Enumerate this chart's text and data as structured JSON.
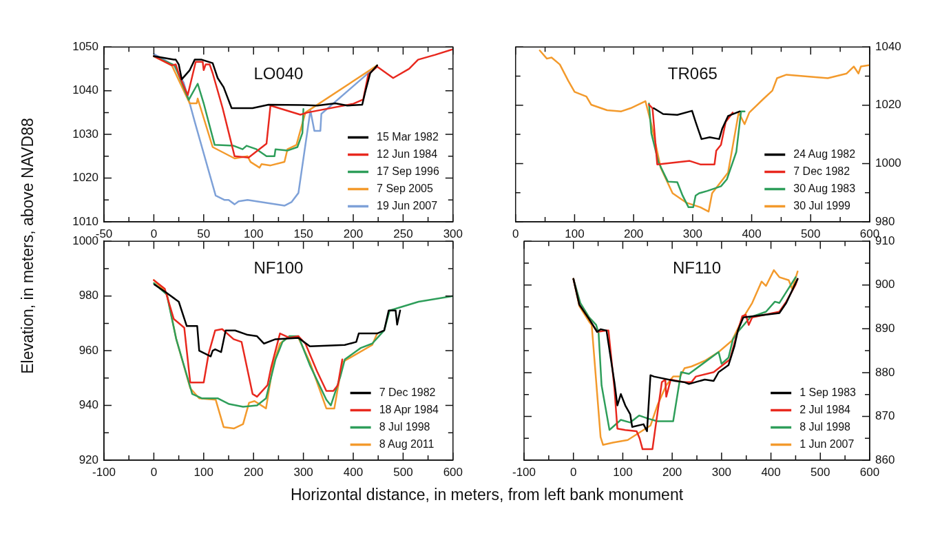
{
  "chart_data": [
    {
      "type": "line",
      "title": "LO040",
      "ylabel": "Elevation, in meters, above NAVD88",
      "marker": "none",
      "legend": "bottom right",
      "xlim": [
        -50,
        300
      ],
      "xticks": [
        -50,
        {
          "value": -25,
          "label": null
        },
        0,
        {
          "value": 25,
          "label": null
        },
        50,
        {
          "value": 75,
          "label": null
        },
        100,
        {
          "value": 125,
          "label": null
        },
        150,
        {
          "value": 175,
          "label": null
        },
        200,
        {
          "value": 225,
          "label": null
        },
        250,
        {
          "value": 275,
          "label": null
        },
        300
      ],
      "ylim": [
        1010,
        1050
      ],
      "yticks": [
        1010,
        {
          "value": 1015,
          "label": null
        },
        1020,
        {
          "value": 1025,
          "label": null
        },
        1030,
        {
          "value": 1035,
          "label": null
        },
        1040,
        {
          "value": 1045,
          "label": null
        },
        1050
      ],
      "series": [
        {
          "name": "15 Mar 1982",
          "color": "#000000",
          "x": [
            0,
            20,
            22,
            25,
            28,
            36,
            41,
            48,
            59,
            64,
            70,
            78,
            99,
            115,
            150,
            164,
            182,
            194,
            209,
            212,
            217,
            224
          ],
          "values": [
            1047.9,
            1047.1,
            1047.1,
            1046,
            1042.6,
            1044.7,
            1047.1,
            1047.1,
            1046.3,
            1042.9,
            1040.8,
            1036,
            1036,
            1036.8,
            1036.7,
            1036.6,
            1037.1,
            1036.6,
            1036.8,
            1039.7,
            1044,
            1045.8
          ]
        },
        {
          "name": "12 Jun 1984",
          "color": "#e8281e",
          "x": [
            0,
            18,
            22,
            26,
            34,
            42,
            49,
            50,
            52,
            56,
            59,
            69,
            81,
            95,
            113,
            117,
            147,
            154,
            200,
            210,
            215,
            224,
            240,
            256,
            265,
            282,
            300
          ],
          "values": [
            1047.9,
            1045.8,
            1046,
            1043.2,
            1039,
            1046.6,
            1046.6,
            1044.7,
            1046,
            1046,
            1044,
            1036,
            1025,
            1024.7,
            1027.9,
            1036.6,
            1034.5,
            1035,
            1037,
            1038,
            1043.7,
            1045.5,
            1042.9,
            1045,
            1047.1,
            1048.2,
            1049.5
          ]
        },
        {
          "name": "17 Sep 1996",
          "color": "#2e9e5a",
          "x": [
            0,
            21,
            35,
            44,
            50,
            61,
            80,
            89,
            93,
            103,
            113,
            121,
            122,
            134,
            144,
            149,
            150
          ],
          "values": [
            1047.9,
            1045.8,
            1037.9,
            1041.6,
            1037.1,
            1027.6,
            1027.4,
            1026.6,
            1027.4,
            1026.6,
            1025,
            1025,
            1026.6,
            1026.3,
            1027.1,
            1030.3,
            1035.8
          ]
        },
        {
          "name": "7 Sep 2005",
          "color": "#f39a2c",
          "x": [
            0,
            18,
            36,
            43,
            44,
            59,
            81,
            94,
            97,
            106,
            108,
            117,
            131,
            134,
            143,
            152,
            224
          ],
          "values": [
            1047.9,
            1045.8,
            1037.1,
            1037.1,
            1038.2,
            1027.1,
            1024.5,
            1025,
            1023.7,
            1022.4,
            1023.2,
            1022.9,
            1023.7,
            1026.6,
            1027.6,
            1035,
            1045.8
          ]
        },
        {
          "name": "19 Jun 2007",
          "color": "#7ea1d8",
          "x": [
            0,
            20,
            30,
            36,
            41,
            62,
            71,
            75,
            81,
            85,
            94,
            131,
            138,
            145,
            157,
            161,
            167,
            168,
            224
          ],
          "values": [
            1048.4,
            1045.8,
            1041.8,
            1037.1,
            1032.9,
            1016,
            1015,
            1015,
            1014,
            1014.7,
            1015,
            1013.7,
            1014.5,
            1016.6,
            1035.5,
            1030.8,
            1030.8,
            1034.7,
            1045.8
          ]
        }
      ]
    },
    {
      "type": "line",
      "title": "TR065",
      "marker": "none",
      "legend": "bottom right",
      "xlim": [
        0,
        600
      ],
      "xticks": [
        0,
        {
          "value": 50,
          "label": null
        },
        100,
        {
          "value": 150,
          "label": null
        },
        200,
        {
          "value": 250,
          "label": null
        },
        300,
        {
          "value": 350,
          "label": null
        },
        400,
        {
          "value": 450,
          "label": null
        },
        500,
        {
          "value": 550,
          "label": null
        },
        600
      ],
      "y2lim": [
        980,
        1040
      ],
      "y2ticks": [
        980,
        {
          "value": 990,
          "label": null
        },
        1000,
        {
          "value": 1010,
          "label": null
        },
        1020,
        {
          "value": 1030,
          "label": null
        },
        1040
      ],
      "series": [
        {
          "name": "24 Aug 1982",
          "color": "#000000",
          "axis": "y2",
          "x": [
            234,
            250,
            274,
            299,
            305,
            315,
            329,
            345,
            350,
            360,
            380
          ],
          "values": [
            1019,
            1017,
            1016.7,
            1018.1,
            1014.3,
            1008.4,
            1009,
            1008.4,
            1011.9,
            1016.3,
            1017.9
          ]
        },
        {
          "name": "7 Dec 1982",
          "color": "#e8281e",
          "axis": "y2",
          "x": [
            226,
            232,
            240,
            295,
            313,
            337,
            340,
            348,
            356,
            368
          ],
          "values": [
            1020.2,
            1019,
            999.7,
            1000.9,
            999.7,
            999.7,
            1004.4,
            1006.4,
            1014.3,
            1017.5
          ]
        },
        {
          "name": "30 Aug 1983",
          "color": "#2e9e5a",
          "axis": "y2",
          "x": [
            226,
            230,
            242,
            258,
            274,
            283,
            293,
            301,
            305,
            311,
            325,
            348,
            358,
            374,
            382,
            388
          ],
          "values": [
            1020.6,
            1010.4,
            1000.5,
            993.8,
            993.6,
            989,
            985,
            985,
            989,
            989.8,
            990.6,
            992.2,
            994.6,
            1004,
            1017.9,
            1017.9
          ]
        },
        {
          "name": "30 Jul 1999",
          "color": "#f39a2c",
          "axis": "y2",
          "x": [
            41,
            53,
            61,
            75,
            89,
            100,
            120,
            128,
            155,
            179,
            195,
            220,
            230,
            246,
            266,
            289,
            313,
            327,
            333,
            360,
            378,
            388,
            396,
            420,
            435,
            443,
            459,
            529,
            561,
            573,
            581,
            585,
            598
          ],
          "values": [
            1038.8,
            1036,
            1036.4,
            1034,
            1028.5,
            1024.6,
            1023,
            1020.2,
            1018.3,
            1017.9,
            1019,
            1021.4,
            1013.5,
            998.5,
            989.8,
            986.6,
            985,
            983.5,
            989.8,
            996.9,
            1017.5,
            1013.5,
            1017.5,
            1022.2,
            1025,
            1029.3,
            1030.5,
            1029.3,
            1030.9,
            1033.3,
            1030.9,
            1033.3,
            1033.7
          ]
        }
      ]
    },
    {
      "type": "line",
      "title": "NF100",
      "xlabel": "Horizontal distance, in meters, from left bank monument",
      "marker": "none",
      "legend": "bottom right",
      "xlim": [
        -100,
        600
      ],
      "xticks": [
        -100,
        {
          "value": -50,
          "label": null
        },
        0,
        {
          "value": 50,
          "label": null
        },
        100,
        {
          "value": 150,
          "label": null
        },
        200,
        {
          "value": 250,
          "label": null
        },
        300,
        {
          "value": 350,
          "label": null
        },
        400,
        {
          "value": 450,
          "label": null
        },
        500,
        {
          "value": 550,
          "label": null
        },
        600
      ],
      "ylim": [
        920,
        1000
      ],
      "yticks": [
        920,
        {
          "value": 930,
          "label": null
        },
        940,
        {
          "value": 950,
          "label": null
        },
        960,
        {
          "value": 970,
          "label": null
        },
        980,
        {
          "value": 990,
          "label": null
        },
        1000
      ],
      "series": [
        {
          "name": "7 Dec 1982",
          "color": "#000000",
          "x": [
            1,
            22,
            50,
            66,
            87,
            91,
            114,
            118,
            123,
            135,
            144,
            163,
            188,
            207,
            221,
            244,
            290,
            313,
            383,
            406,
            411,
            448,
            462,
            471,
            485,
            488,
            494
          ],
          "values": [
            984.2,
            981.6,
            977.9,
            969,
            969,
            960,
            957.9,
            960,
            960.5,
            959.5,
            967.4,
            967.4,
            965.8,
            965.3,
            962.6,
            964.2,
            964.7,
            961.6,
            962.1,
            963.2,
            966.3,
            966.3,
            967.4,
            974.7,
            974.7,
            969.5,
            974.7
          ]
        },
        {
          "name": "18 Apr 1984",
          "color": "#e8281e",
          "x": [
            0,
            22,
            40,
            61,
            73,
            100,
            110,
            123,
            137,
            160,
            176,
            198,
            207,
            228,
            235,
            244,
            253,
            272,
            290,
            304,
            327,
            346,
            360,
            369,
            378
          ],
          "values": [
            985.8,
            982.6,
            971.6,
            968.4,
            948.4,
            948.4,
            959,
            967.4,
            967.9,
            964.2,
            963.2,
            944.2,
            943.2,
            947.4,
            953.7,
            960,
            966.3,
            964.7,
            965.3,
            962.6,
            952.6,
            945.3,
            945.3,
            947.4,
            956.8
          ]
        },
        {
          "name": "8 Jul 1998",
          "color": "#2e9e5a",
          "x": [
            0,
            26,
            45,
            77,
            96,
            128,
            151,
            179,
            207,
            225,
            244,
            258,
            272,
            290,
            313,
            346,
            355,
            374,
            383,
            415,
            438,
            462,
            473,
            531,
            600
          ],
          "values": [
            984.7,
            980.5,
            964.2,
            944.2,
            942.6,
            942.6,
            940.5,
            939.5,
            940,
            942.6,
            956.8,
            963.2,
            965.3,
            965.3,
            954.7,
            942.1,
            940,
            950.5,
            956.8,
            961,
            962.6,
            967.4,
            974.7,
            977.9,
            980
          ]
        },
        {
          "name": "8 Aug 2011",
          "color": "#f39a2c",
          "x": [
            0,
            26,
            45,
            73,
            91,
            124,
            140,
            161,
            179,
            191,
            202,
            225,
            239,
            253,
            272,
            290,
            313,
            346,
            362,
            378,
            438,
            448
          ],
          "values": [
            985.8,
            981,
            964.2,
            946.3,
            942.6,
            942.1,
            932.1,
            931.6,
            933.2,
            941,
            941.6,
            938.9,
            954.7,
            962.6,
            965.3,
            964.7,
            955.8,
            938.9,
            938.9,
            955.8,
            962.1,
            966.3
          ]
        }
      ]
    },
    {
      "type": "line",
      "title": "NF110",
      "marker": "none",
      "legend": "bottom right",
      "xlim": [
        -100,
        600
      ],
      "xticks": [
        -100,
        {
          "value": -50,
          "label": null
        },
        0,
        {
          "value": 50,
          "label": null
        },
        100,
        {
          "value": 150,
          "label": null
        },
        200,
        {
          "value": 250,
          "label": null
        },
        300,
        {
          "value": 350,
          "label": null
        },
        400,
        {
          "value": 450,
          "label": null
        },
        500,
        {
          "value": 550,
          "label": null
        },
        600
      ],
      "y2lim": [
        860,
        910
      ],
      "y2ticks": [
        860,
        {
          "value": 865,
          "label": null
        },
        870,
        {
          "value": 875,
          "label": null
        },
        880,
        {
          "value": 885,
          "label": null
        },
        890,
        {
          "value": 895,
          "label": null
        },
        900,
        {
          "value": 905,
          "label": null
        },
        910
      ],
      "series": [
        {
          "name": "1 Sep 1983",
          "color": "#000000",
          "axis": "y2",
          "x": [
            0,
            12,
            32,
            48,
            55,
            67,
            83,
            89,
            96,
            105,
            115,
            119,
            142,
            149,
            156,
            163,
            206,
            225,
            234,
            266,
            284,
            294,
            314,
            326,
            333,
            344,
            417,
            431,
            454
          ],
          "values": [
            901.4,
            895.5,
            892.2,
            889.3,
            889.9,
            889.6,
            877.8,
            872.5,
            875.1,
            872.5,
            870.5,
            867.6,
            868.2,
            866.6,
            879.4,
            879.1,
            878.1,
            877.8,
            877.4,
            878.4,
            878.1,
            880.1,
            881.7,
            886,
            889.6,
            892.6,
            893.6,
            895.9,
            901.4
          ]
        },
        {
          "name": "2 Jul 1984",
          "color": "#e8281e",
          "axis": "y2",
          "x": [
            0,
            12,
            32,
            48,
            67,
            71,
            83,
            89,
            105,
            128,
            134,
            140,
            160,
            165,
            179,
            186,
            188,
            197,
            225,
            239,
            248,
            284,
            317,
            333,
            342,
            349,
            355,
            362,
            417,
            431,
            450,
            454
          ],
          "values": [
            901.4,
            895.5,
            892.2,
            889.3,
            889.6,
            889.6,
            876.4,
            867.2,
            866.9,
            866.6,
            865,
            862.5,
            862.5,
            866.6,
            877.8,
            878.4,
            874.5,
            878.4,
            877.8,
            877.8,
            879.1,
            880.1,
            883,
            889.6,
            892.9,
            893.2,
            890.9,
            892.6,
            893.9,
            896.2,
            900.1,
            901.4
          ]
        },
        {
          "name": "8 Jul 1998",
          "color": "#2e9e5a",
          "axis": "y2",
          "x": [
            0,
            14,
            32,
            46,
            51,
            57,
            73,
            83,
            96,
            115,
            133,
            151,
            170,
            202,
            218,
            234,
            294,
            300,
            314,
            323,
            333,
            358,
            390,
            408,
            417,
            450
          ],
          "values": [
            901.4,
            895.9,
            892.6,
            890.9,
            889,
            877.1,
            866.9,
            867.9,
            869.2,
            868.6,
            870.2,
            869.5,
            868.9,
            868.9,
            880.1,
            879.7,
            884.7,
            882,
            883.4,
            887.6,
            889.3,
            892.6,
            893.9,
            896.2,
            895.9,
            901.8
          ]
        },
        {
          "name": "1 Jun 2007",
          "color": "#f39a2c",
          "axis": "y2",
          "x": [
            0,
            12,
            32,
            37,
            55,
            60,
            80,
            110,
            156,
            170,
            188,
            202,
            216,
            225,
            239,
            266,
            294,
            321,
            344,
            362,
            381,
            390,
            406,
            417,
            436,
            443,
            454
          ],
          "values": [
            901.4,
            895.2,
            891.6,
            890.9,
            865.3,
            863.5,
            864,
            864.6,
            867.9,
            872.5,
            877.1,
            879.1,
            879.1,
            881,
            881.4,
            882.7,
            884.7,
            887.3,
            892.6,
            895.9,
            900.8,
            899.8,
            903.4,
            901.8,
            901.1,
            899.1,
            903.1
          ]
        }
      ]
    }
  ]
}
